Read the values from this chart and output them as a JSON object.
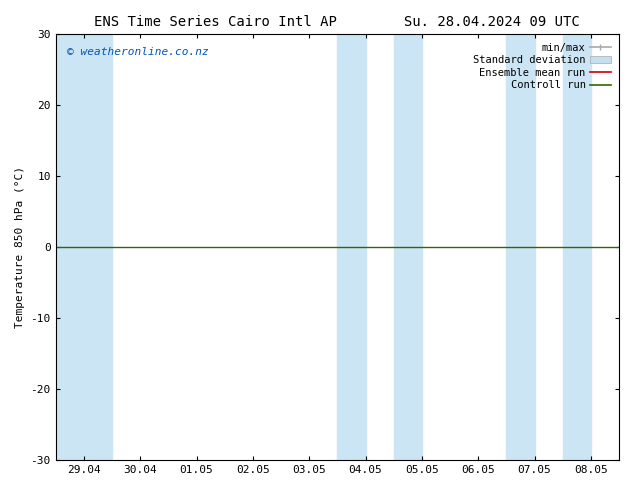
{
  "title_left": "ENS Time Series Cairo Intl AP",
  "title_right": "Su. 28.04.2024 09 UTC",
  "ylabel": "Temperature 850 hPa (°C)",
  "ylim": [
    -30,
    30
  ],
  "yticks": [
    -30,
    -20,
    -10,
    0,
    10,
    20,
    30
  ],
  "xtick_labels": [
    "29.04",
    "30.04",
    "01.05",
    "02.05",
    "03.05",
    "04.05",
    "05.05",
    "06.05",
    "07.05",
    "08.05"
  ],
  "watermark": "© weatheronline.co.nz",
  "watermark_color": "#0055bb",
  "bg_color": "#ffffff",
  "plot_bg_color": "#ffffff",
  "band_color": "#cce5f5",
  "zero_line_color": "#336600",
  "ensemble_mean_color": "#cc0000",
  "control_run_color": "#336600",
  "minmax_color": "#aaaaaa",
  "stddev_color": "#c5dff0",
  "legend_entries": [
    "min/max",
    "Standard deviation",
    "Ensemble mean run",
    "Controll run"
  ],
  "title_fontsize": 10,
  "axis_fontsize": 8,
  "tick_fontsize": 8,
  "legend_fontsize": 7.5
}
